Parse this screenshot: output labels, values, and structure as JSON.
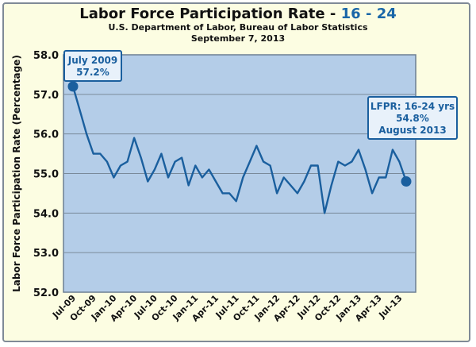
{
  "chart_data": {
    "type": "line",
    "title_main": "Labor Force Participation Rate -",
    "title_accent": "16 - 24",
    "subtitle_1": "U.S. Department of Labor, Bureau of Labor Statistics",
    "subtitle_2": "September 7, 2013",
    "ylabel": "Labor Force Participation Rate (Percentage)",
    "xlabel": "",
    "ylim": [
      52.0,
      58.0
    ],
    "yticks": [
      "52.0",
      "53.0",
      "54.0",
      "55.0",
      "56.0",
      "57.0",
      "58.0"
    ],
    "x": [
      "Jul-09",
      "Aug-09",
      "Sep-09",
      "Oct-09",
      "Nov-09",
      "Dec-09",
      "Jan-10",
      "Feb-10",
      "Mar-10",
      "Apr-10",
      "May-10",
      "Jun-10",
      "Jul-10",
      "Aug-10",
      "Sep-10",
      "Oct-10",
      "Nov-10",
      "Dec-10",
      "Jan-11",
      "Feb-11",
      "Mar-11",
      "Apr-11",
      "May-11",
      "Jun-11",
      "Jul-11",
      "Aug-11",
      "Sep-11",
      "Oct-11",
      "Nov-11",
      "Dec-11",
      "Jan-12",
      "Feb-12",
      "Mar-12",
      "Apr-12",
      "May-12",
      "Jun-12",
      "Jul-12",
      "Aug-12",
      "Sep-12",
      "Oct-12",
      "Nov-12",
      "Dec-12",
      "Jan-13",
      "Feb-13",
      "Mar-13",
      "Apr-13",
      "May-13",
      "Jun-13",
      "Jul-13",
      "Aug-13"
    ],
    "xtick_labels": [
      "Jul-09",
      "Oct-09",
      "Jan-10",
      "Apr-10",
      "Jul-10",
      "Oct-10",
      "Jan-11",
      "Apr-11",
      "Jul-11",
      "Oct-11",
      "Jan-12",
      "Apr-12",
      "Jul-12",
      "Oct-12",
      "Jan-13",
      "Apr-13",
      "Jul-13"
    ],
    "series": [
      {
        "values": [
          57.2,
          56.6,
          56.0,
          55.5,
          55.5,
          55.3,
          54.9,
          55.2,
          55.3,
          55.9,
          55.4,
          54.8,
          55.1,
          55.5,
          54.9,
          55.3,
          55.4,
          54.7,
          55.2,
          54.9,
          55.1,
          54.8,
          54.5,
          54.5,
          54.3,
          54.9,
          55.3,
          55.7,
          55.3,
          55.2,
          54.5,
          54.9,
          54.7,
          54.5,
          54.8,
          55.2,
          55.2,
          54.0,
          54.7,
          55.3,
          55.2,
          55.3,
          55.6,
          55.1,
          54.5,
          54.9,
          54.9,
          55.6,
          55.3,
          54.8
        ]
      }
    ],
    "grid": true,
    "colors": {
      "line": "#1a5f9e",
      "plot_fill": "#b4cde8",
      "frame_fill": "#fcfde2",
      "grid": "#7a8a9a",
      "annotation_border": "#1a5f9e",
      "annotation_fill": "#e8f1fa"
    },
    "annotations": [
      {
        "lines": [
          "July 2009",
          "57.2%"
        ],
        "index": 0
      },
      {
        "lines": [
          "LFPR: 16-24 yrs",
          "54.8%",
          "August 2013"
        ],
        "index": 49
      }
    ]
  }
}
